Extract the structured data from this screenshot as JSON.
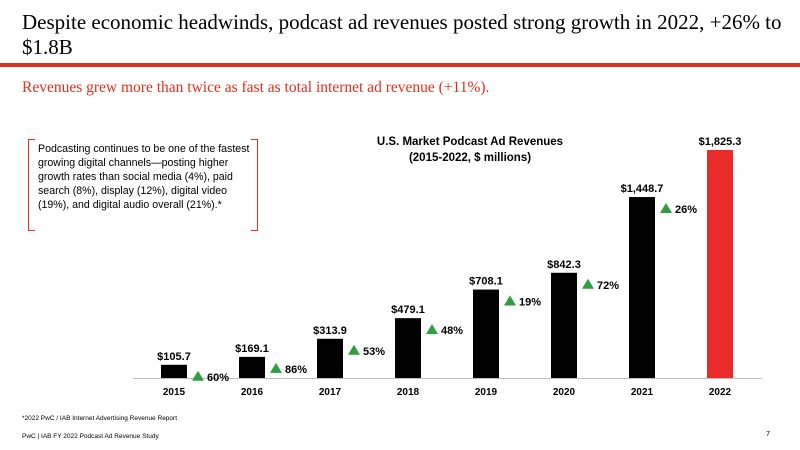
{
  "header": {
    "title": "Despite economic headwinds, podcast ad revenues posted strong growth in 2022, +26% to $1.8B",
    "subtitle": "Revenues grew more than twice as fast as total internet ad revenue (+11%)."
  },
  "callout": {
    "text": "Podcasting continues to be one of the fastest growing digital channels—posting higher growth rates than social media (4%), paid search (8%), display (12%), digital video (19%), and digital audio overall (21%).*"
  },
  "chart_data": {
    "type": "bar",
    "title": "U.S. Market Podcast Ad Revenues",
    "subtitle": "(2015-2022, $ millions)",
    "categories": [
      "2015",
      "2016",
      "2017",
      "2018",
      "2019",
      "2020",
      "2021",
      "2022"
    ],
    "values": [
      105.7,
      169.1,
      313.9,
      479.1,
      708.1,
      842.3,
      1448.7,
      1825.3
    ],
    "value_labels": [
      "$105.7",
      "$169.1",
      "$313.9",
      "$479.1",
      "$708.1",
      "$842.3",
      "$1,448.7",
      "$1,825.3"
    ],
    "growth_labels": [
      "60%",
      "86%",
      "53%",
      "48%",
      "19%",
      "72%",
      "26%"
    ],
    "bar_color": "#000000",
    "highlight_color": "#eb2a2a",
    "growth_arrow_color": "#2e9e3e",
    "grid": false,
    "legend": "none"
  },
  "footer": {
    "footnote": "*2022 PwC / IAB Internet Advertising Revenue Report",
    "source": "PwC  |  IAB FY 2022 Podcast Ad Revenue Study",
    "page_number": "7"
  }
}
